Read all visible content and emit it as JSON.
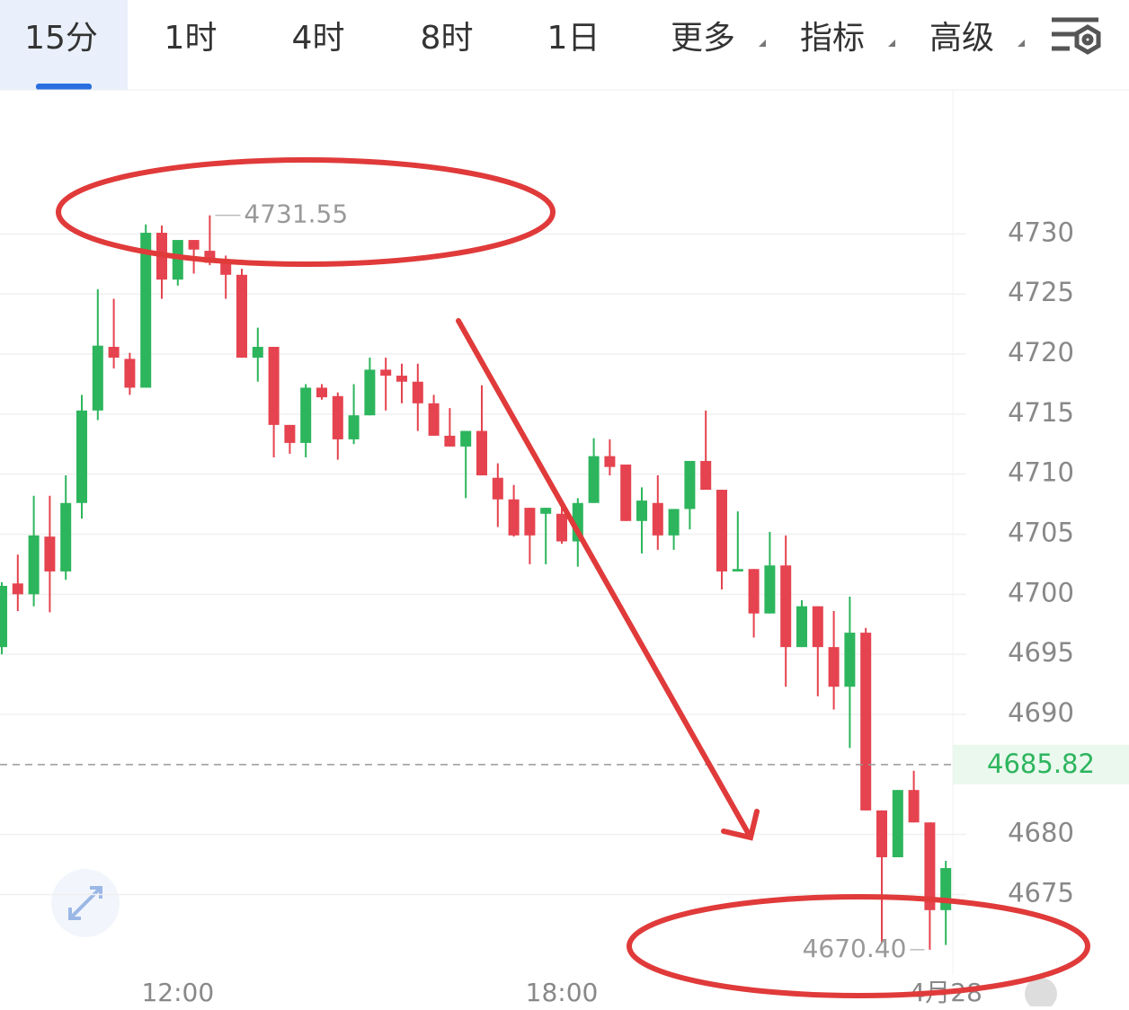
{
  "tabs": [
    "15分",
    "1时",
    "4时",
    "8时",
    "1日",
    "更多",
    "指标",
    "高级"
  ],
  "chart_data": {
    "type": "candlestick",
    "categories": [
      null,
      null,
      null,
      null,
      null,
      null,
      null,
      null,
      null,
      null,
      null,
      "12:00",
      null,
      null,
      null,
      null,
      null,
      null,
      null,
      null,
      null,
      null,
      null,
      null,
      null,
      null,
      null,
      null,
      null,
      null,
      null,
      null,
      null,
      null,
      null,
      "18:00",
      null,
      null,
      null,
      null,
      null,
      null,
      null,
      null,
      null,
      null,
      null,
      null,
      null,
      null,
      null,
      null,
      null,
      null,
      null,
      null,
      null,
      null,
      null,
      "4月28"
    ],
    "open": [
      4695.6,
      4700.9,
      4700,
      4704.8,
      4701.9,
      4707.6,
      4715.3,
      4720.6,
      4719.6,
      4717.2,
      4730.1,
      4726.2,
      4729.5,
      4728.6,
      4727.7,
      4726.6,
      4719.7,
      4720.6,
      4714.1,
      4712.6,
      4717.2,
      4716.5,
      4712.9,
      4714.9,
      4718.7,
      4718.2,
      4717.7,
      4715.9,
      4713.2,
      4712.3,
      4713.6,
      4709.7,
      4707.9,
      4707.2,
      4706.7,
      4706.7,
      4704.4,
      4707.6,
      4711.5,
      4710.8,
      4706.1,
      4707.6,
      4704.9,
      4707.1,
      4711.1,
      4708.7,
      4701.9,
      4702.1,
      4698.4,
      4702.4,
      4695.6,
      4699,
      4695.6,
      4692.3,
      4696.8,
      4682,
      4678.1,
      4683.7,
      4681,
      4673.7
    ],
    "high": [
      4701,
      4703.3,
      4708.2,
      4708.2,
      4709.9,
      4716.6,
      4725.4,
      4724.6,
      4720.1,
      4730.8,
      4730.7,
      4729.5,
      4729.5,
      4731.55,
      4728.2,
      4727.1,
      4722.2,
      4720.6,
      4714.1,
      4717.5,
      4717.5,
      4716.8,
      4717.5,
      4719.7,
      4719.7,
      4719.2,
      4719.2,
      4716.6,
      4715.5,
      4713.6,
      4717.4,
      4710.9,
      4709.1,
      4707.2,
      4707.2,
      4707.6,
      4708,
      4713,
      4712.9,
      4710.8,
      4708.9,
      4709.9,
      4707.1,
      4711.1,
      4715.3,
      4708.7,
      4706.9,
      4702.1,
      4705.2,
      4704.9,
      4699.5,
      4699,
      4698.6,
      4699.8,
      4697.2,
      4682,
      4683.7,
      4685.3,
      4681,
      4677.8
    ],
    "low": [
      4695,
      4698.6,
      4699,
      4698.5,
      4701.2,
      4706.3,
      4714.5,
      4718.8,
      4716.6,
      4717.2,
      4724.6,
      4725.7,
      4726.7,
      4727.4,
      4724.6,
      4719.7,
      4717.7,
      4711.4,
      4711.7,
      4711.4,
      4716.2,
      4711.2,
      4712.5,
      4714.9,
      4715.3,
      4715.9,
      4713.6,
      4713.2,
      4712.3,
      4708,
      4709.9,
      4705.6,
      4704.8,
      4702.5,
      4702.5,
      4704.2,
      4702.3,
      4707.6,
      4709.9,
      4706.1,
      4703.4,
      4703.7,
      4703.7,
      4705.4,
      4708.7,
      4700.4,
      4701.9,
      4696.4,
      4698.4,
      4692.3,
      4695.6,
      4691.5,
      4690.4,
      4687.2,
      4682,
      4671,
      4678.1,
      4681,
      4670.4,
      4670.8
    ],
    "close": [
      4700.7,
      4700,
      4704.9,
      4701.9,
      4707.6,
      4715.3,
      4720.7,
      4719.7,
      4717.2,
      4730.1,
      4726.2,
      4729.5,
      4728.7,
      4727.6,
      4726.6,
      4719.7,
      4720.6,
      4714.1,
      4712.6,
      4717.2,
      4716.4,
      4712.9,
      4714.9,
      4718.7,
      4718.2,
      4717.7,
      4715.9,
      4713.2,
      4712.3,
      4713.6,
      4709.9,
      4707.9,
      4704.9,
      4704.9,
      4707.2,
      4704.4,
      4707.6,
      4711.5,
      4710.6,
      4706.1,
      4707.8,
      4704.9,
      4707.1,
      4711.1,
      4708.7,
      4701.9,
      4702.1,
      4698.4,
      4702.4,
      4695.6,
      4699,
      4695.6,
      4692.3,
      4696.8,
      4682,
      4678.1,
      4683.7,
      4681,
      4673.7,
      4677.2
    ],
    "up_color": "#2db55d",
    "down_color": "#e5434f",
    "ylim": [
      4668.3,
      4742.0
    ],
    "yticks": [
      4675,
      4680,
      4690,
      4695,
      4700,
      4705,
      4710,
      4715,
      4720,
      4725,
      4730
    ],
    "grid": true,
    "max_price": 4731.55,
    "min_price": {
      "value": 4670.4,
      "label": "4670.40"
    },
    "last_price": 4685.82
  }
}
